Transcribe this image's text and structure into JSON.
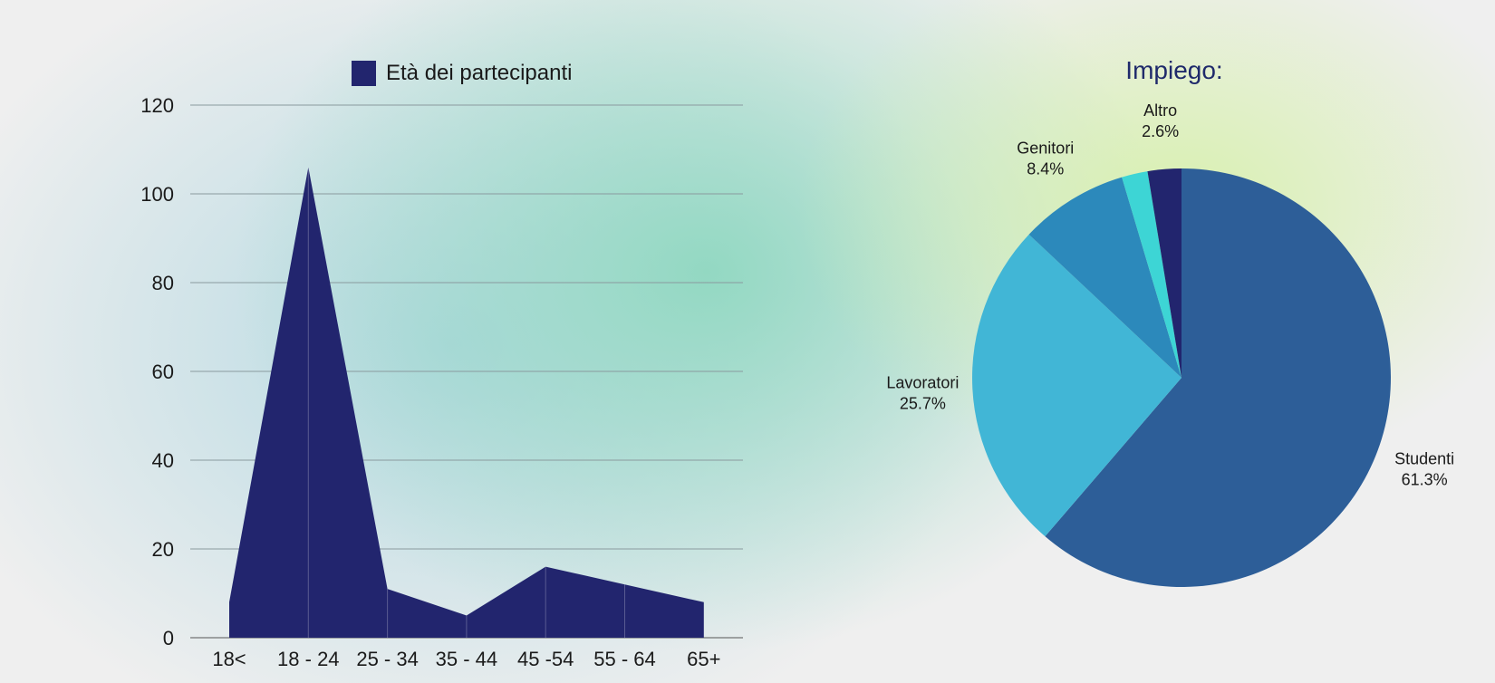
{
  "chart_data": [
    {
      "type": "area",
      "legend": "Età dei partecipanti",
      "categories": [
        "18<",
        "18 - 24",
        "25 - 34",
        "35 - 44",
        "45 -54",
        "55 - 64",
        "65+"
      ],
      "series": [
        {
          "name": "Età dei partecipanti",
          "values": [
            8,
            106,
            11,
            5,
            16,
            12,
            8
          ]
        }
      ],
      "ylim": [
        0,
        120
      ],
      "yticks": [
        "0",
        "20",
        "40",
        "60",
        "80",
        "100",
        "120"
      ],
      "ytick_values": [
        0,
        20,
        40,
        60,
        80,
        100,
        120
      ],
      "grid": true,
      "legend_position": "top",
      "color": "#22256e"
    },
    {
      "type": "pie",
      "title": "Impiego:",
      "slices": [
        {
          "name": "Studenti",
          "value": 61.3,
          "label": "61.3%",
          "color": "#2d5e98"
        },
        {
          "name": "Lavoratori",
          "value": 25.7,
          "label": "25.7%",
          "color": "#41b6d6"
        },
        {
          "name": "Genitori",
          "value": 8.4,
          "label": "8.4%",
          "color": "#2c89bb"
        },
        {
          "name": "",
          "value": 2.0,
          "label": "",
          "color": "#3dd5d5"
        },
        {
          "name": "Altro",
          "value": 2.6,
          "label": "2.6%",
          "color": "#22256e"
        }
      ]
    }
  ]
}
